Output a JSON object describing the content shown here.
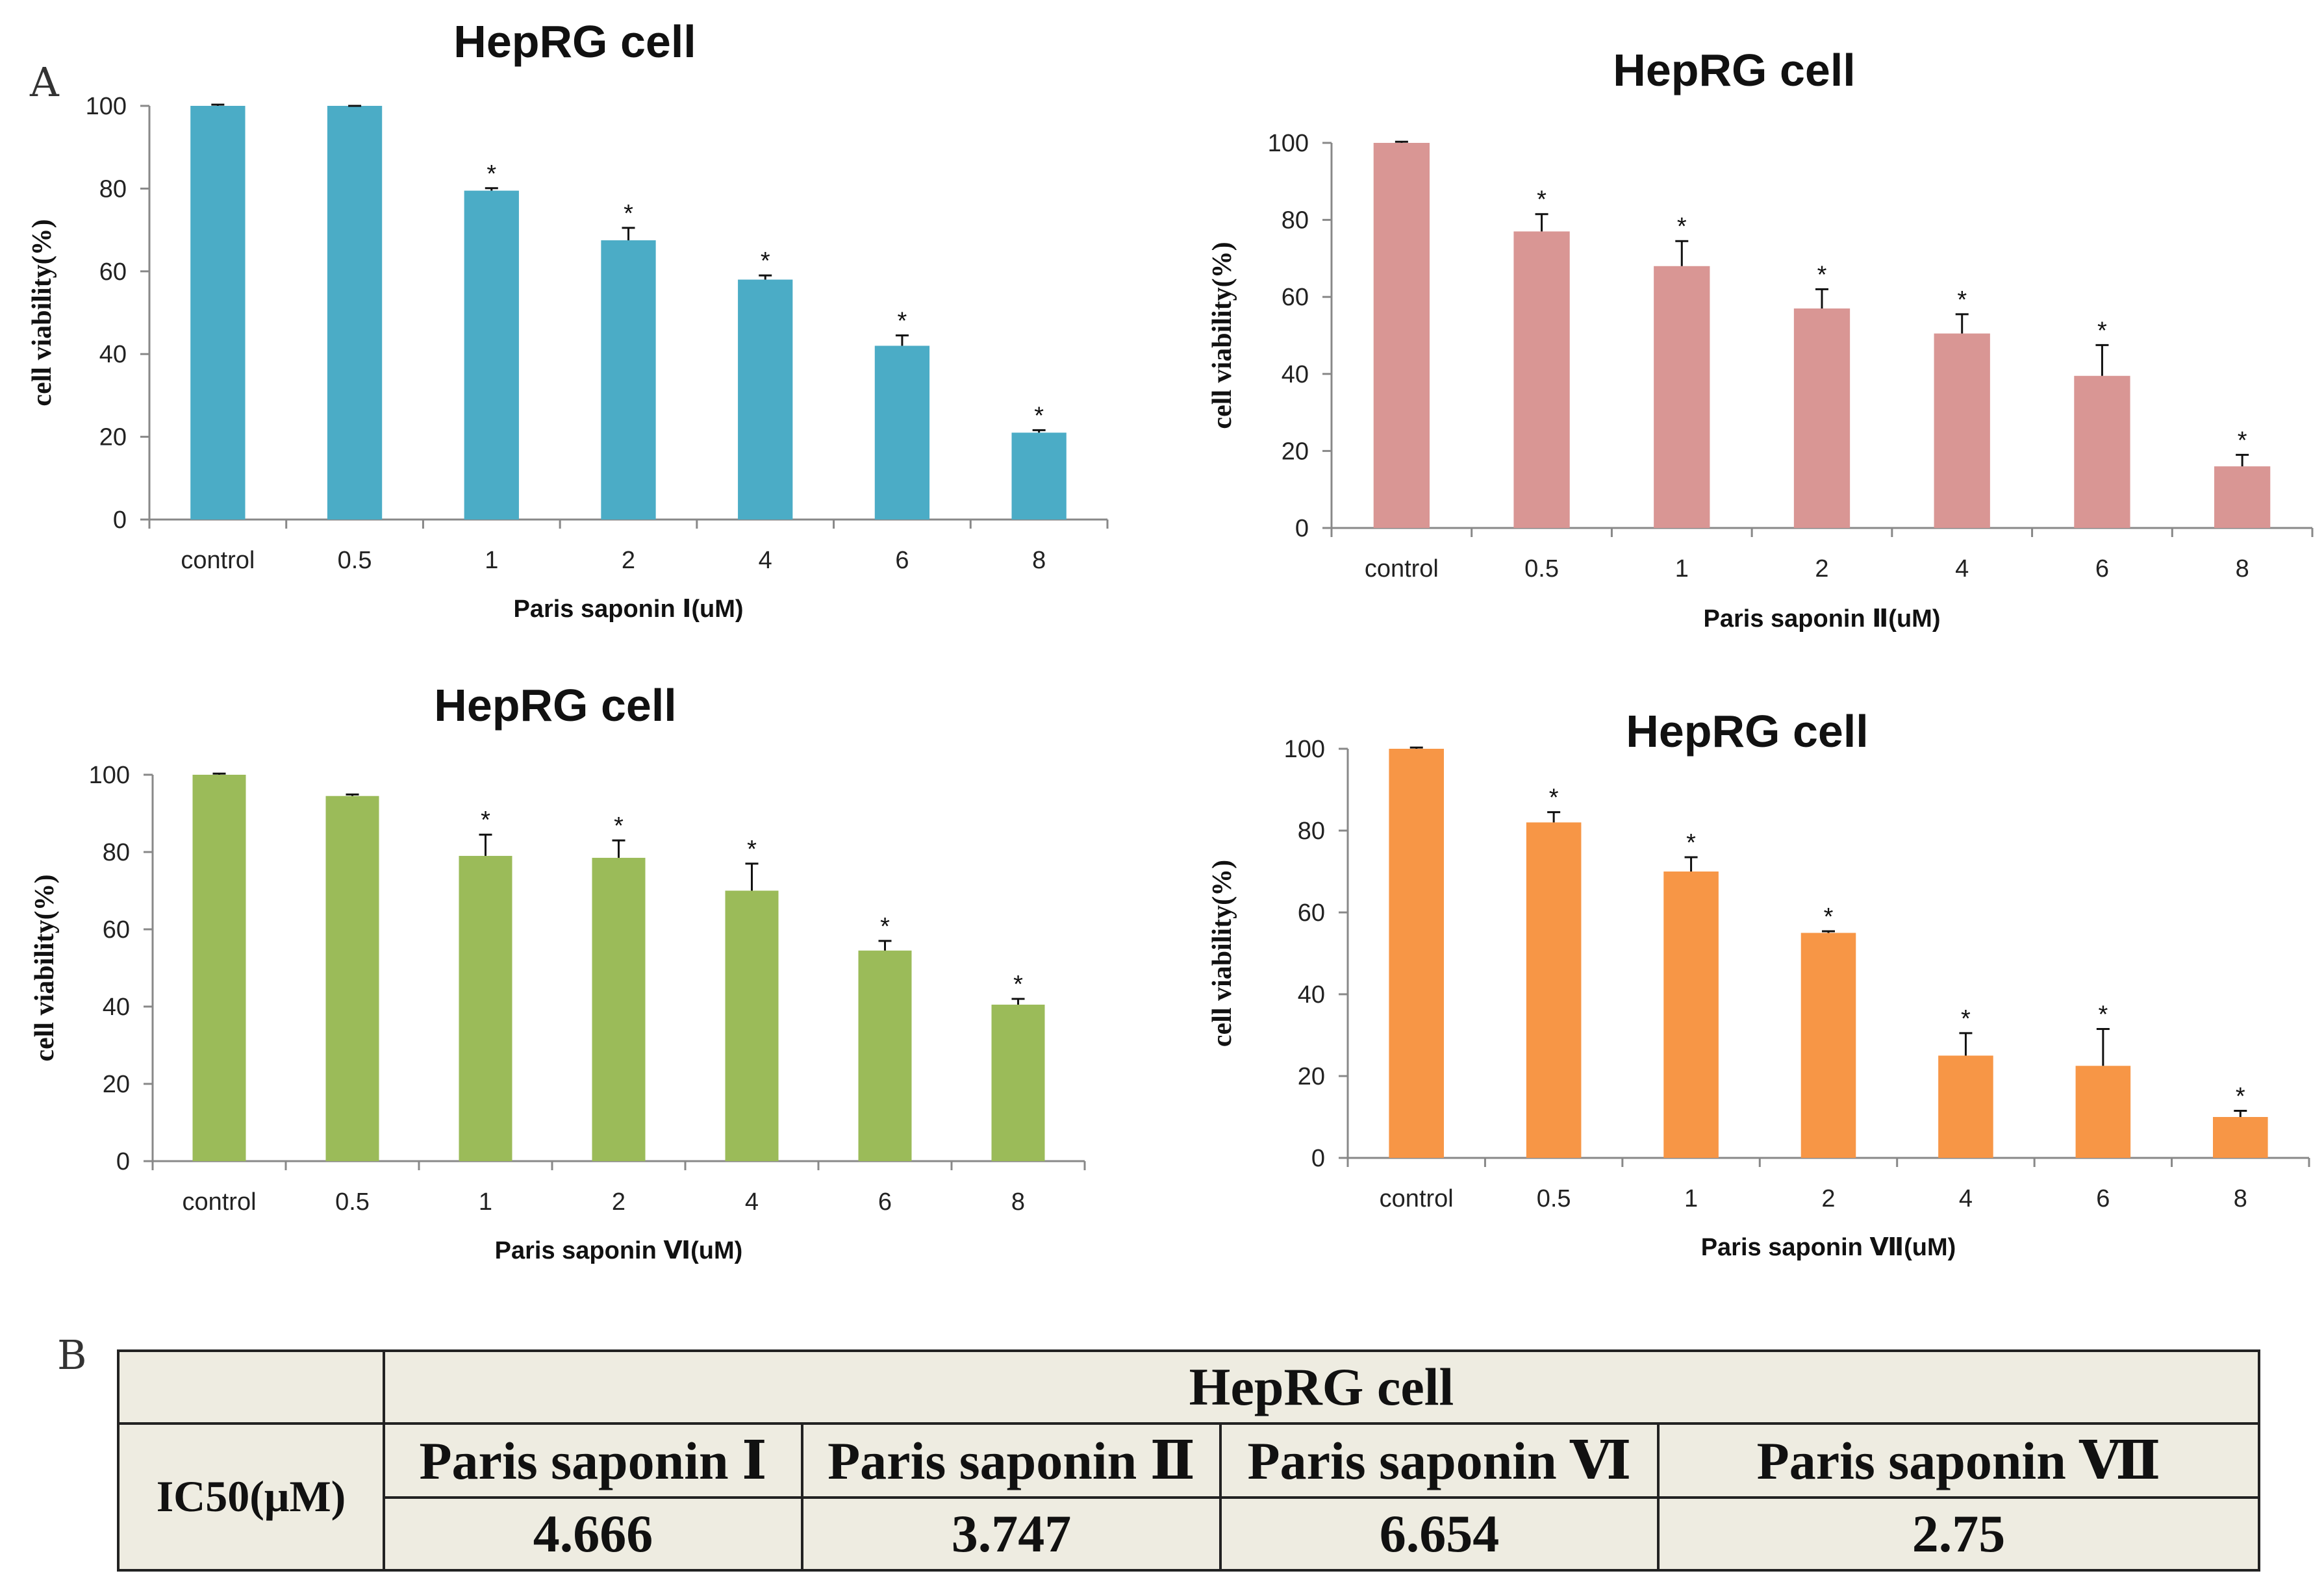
{
  "panel_labels": {
    "a": "A",
    "b": "B"
  },
  "chart_data": [
    {
      "type": "bar",
      "title": "HepRG cell",
      "xlabel": "Paris saponin Ⅰ(uM)",
      "ylabel": "cell viability(%)",
      "categories": [
        "control",
        "0.5",
        "1",
        "2",
        "4",
        "6",
        "8"
      ],
      "values": [
        100,
        100,
        79.5,
        67.5,
        58,
        42,
        21
      ],
      "errors": [
        0.3,
        0,
        0.6,
        3,
        1,
        2.5,
        0.6
      ],
      "significant": [
        "",
        "",
        "*",
        "*",
        "*",
        "*",
        "*"
      ],
      "ylim": [
        0,
        100
      ],
      "yticks": [
        0,
        20,
        40,
        60,
        80,
        100
      ],
      "color": "#4bacc6",
      "grid": false
    },
    {
      "type": "bar",
      "title": "HepRG cell",
      "xlabel": "Paris saponin Ⅱ(uM)",
      "ylabel": "cell viability(%)",
      "categories": [
        "control",
        "0.5",
        "1",
        "2",
        "4",
        "6",
        "8"
      ],
      "values": [
        100,
        77,
        68,
        57,
        50.5,
        39.5,
        16
      ],
      "errors": [
        0.3,
        4.5,
        6.5,
        5,
        5,
        8,
        3
      ],
      "significant": [
        "",
        "*",
        "*",
        "*",
        "*",
        "*",
        "*"
      ],
      "ylim": [
        0,
        100
      ],
      "yticks": [
        0,
        20,
        40,
        60,
        80,
        100
      ],
      "color": "#d99694",
      "grid": false
    },
    {
      "type": "bar",
      "title": "HepRG cell",
      "xlabel": "Paris saponin Ⅵ(uM)",
      "ylabel": "cell viability(%)",
      "categories": [
        "control",
        "0.5",
        "1",
        "2",
        "4",
        "6",
        "8"
      ],
      "values": [
        100,
        94.5,
        79,
        78.5,
        70,
        54.5,
        40.5
      ],
      "errors": [
        0.3,
        0.4,
        5.5,
        4.5,
        7,
        2.5,
        1.5
      ],
      "significant": [
        "",
        "",
        "*",
        "*",
        "*",
        "*",
        "*"
      ],
      "ylim": [
        0,
        100
      ],
      "yticks": [
        0,
        20,
        40,
        60,
        80,
        100
      ],
      "color": "#9bbb59",
      "grid": false
    },
    {
      "type": "bar",
      "title": "HepRG cell",
      "xlabel": "Paris saponin  Ⅶ(uM)",
      "ylabel": "cell viability(%)",
      "categories": [
        "control",
        "0.5",
        "1",
        "2",
        "4",
        "6",
        "8"
      ],
      "values": [
        100,
        82,
        70,
        55,
        25,
        22.5,
        10
      ],
      "errors": [
        0.3,
        2.5,
        3.5,
        0.4,
        5.5,
        9,
        1.5
      ],
      "significant": [
        "",
        "*",
        "*",
        "*",
        "*",
        "*",
        "*"
      ],
      "ylim": [
        0,
        100
      ],
      "yticks": [
        0,
        20,
        40,
        60,
        80,
        100
      ],
      "color": "#f79646",
      "grid": false
    }
  ],
  "table": {
    "header": "HepRG cell",
    "row_label": "IC50(μM)",
    "columns": [
      "Paris saponin Ⅰ",
      "Paris saponin Ⅱ",
      "Paris saponin Ⅵ",
      "Paris saponin Ⅶ"
    ],
    "values": [
      "4.666",
      "3.747",
      "6.654",
      "2.75"
    ]
  }
}
